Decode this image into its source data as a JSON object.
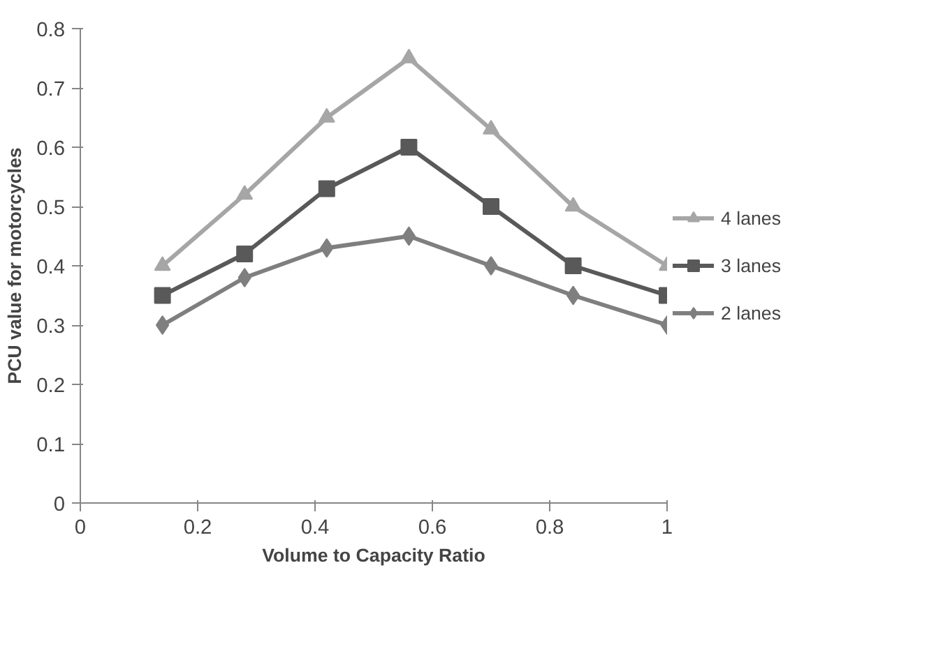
{
  "chart_data": {
    "type": "line",
    "xlabel": "Volume to Capacity Ratio",
    "ylabel": "PCU value for motorcycles",
    "x": [
      0.14,
      0.28,
      0.42,
      0.56,
      0.7,
      0.84,
      1.0
    ],
    "series": [
      {
        "name": "4 lanes",
        "color": "#a6a6a6",
        "marker": "triangle",
        "values": [
          0.4,
          0.52,
          0.65,
          0.75,
          0.63,
          0.5,
          0.4
        ]
      },
      {
        "name": "3 lanes",
        "color": "#595959",
        "marker": "square",
        "values": [
          0.35,
          0.42,
          0.53,
          0.6,
          0.5,
          0.4,
          0.35
        ]
      },
      {
        "name": "2 lanes",
        "color": "#7f7f7f",
        "marker": "diamond",
        "values": [
          0.3,
          0.38,
          0.43,
          0.45,
          0.4,
          0.35,
          0.3
        ]
      }
    ],
    "xlim": [
      0,
      1.0
    ],
    "xticks": [
      0,
      0.2,
      0.4,
      0.6,
      0.8,
      1
    ],
    "ylim": [
      0,
      0.8
    ],
    "yticks": [
      0,
      0.1,
      0.2,
      0.3,
      0.4,
      0.5,
      0.6,
      0.7,
      0.8
    ],
    "grid": false,
    "legend": "right",
    "line_style": "solid"
  }
}
